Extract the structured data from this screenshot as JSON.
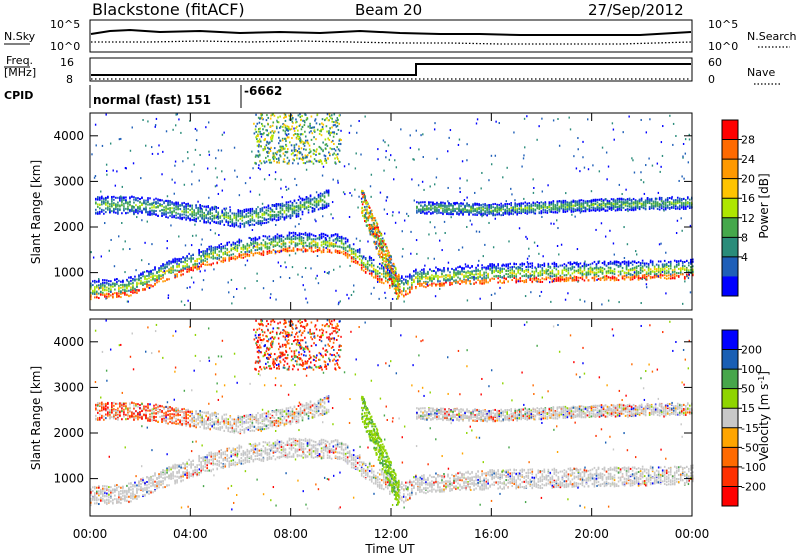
{
  "header": {
    "title": "Blackstone (fitACF)",
    "beam": "Beam 20",
    "date": "27/Sep/2012"
  },
  "top_panels": {
    "nsky_label": "N.Sky",
    "nsky_ticks": [
      "10^5",
      "10^0"
    ],
    "nsearch_label": "N.Search",
    "nsearch_ticks": [
      "10^5",
      "10^0"
    ],
    "freq_label": "Freq.",
    "freq_unit": "[MHz]",
    "freq_ticks": [
      16,
      8
    ],
    "nave_label": "Nave",
    "nave_ticks": [
      60,
      0
    ],
    "cpid_label": "CPID",
    "cpid_segments": [
      {
        "text": "normal (fast) 151",
        "start_hour": 0
      },
      {
        "text": "-6662",
        "start_hour": 6
      }
    ]
  },
  "chart_data": [
    {
      "type": "heatmap",
      "panel": "power",
      "ylabel": "Slant Range [km]",
      "ylim": [
        180,
        4500
      ],
      "yticks": [
        1000,
        2000,
        3000,
        4000
      ],
      "xlim": [
        0,
        24
      ],
      "xtick_labels": [
        "00:00",
        "04:00",
        "08:00",
        "12:00",
        "16:00",
        "20:00",
        "00:00"
      ],
      "xlabel": "Time UT",
      "colorbar": {
        "label": "Power [dB]",
        "ticks": [
          28,
          24,
          20,
          16,
          12,
          8,
          4
        ],
        "colors": [
          "#ff0000",
          "#ff6a00",
          "#ff9900",
          "#ffc400",
          "#aee600",
          "#45a84b",
          "#2a8c7a",
          "#1f5fb8",
          "#0000ff"
        ]
      },
      "bands": [
        {
          "name": "near-range echo",
          "x_hours": [
            0,
            1.5,
            3,
            4.5,
            6,
            8,
            10,
            11,
            12.5,
            13,
            16,
            20,
            24
          ],
          "range_km": [
            650,
            700,
            1050,
            1350,
            1550,
            1700,
            1650,
            1200,
            700,
            900,
            1000,
            1050,
            1100
          ]
        },
        {
          "name": "mid-range echo",
          "x_hours": [
            0.2,
            2,
            4,
            6,
            8,
            9.5
          ],
          "range_km": [
            2500,
            2500,
            2350,
            2200,
            2400,
            2650
          ]
        },
        {
          "name": "far echo",
          "x_hours": [
            13,
            16,
            20,
            24
          ],
          "range_km": [
            2450,
            2400,
            2500,
            2550
          ]
        }
      ]
    },
    {
      "type": "heatmap",
      "panel": "velocity",
      "ylabel": "Slant Range [km]",
      "ylim": [
        180,
        4500
      ],
      "yticks": [
        1000,
        2000,
        3000,
        4000
      ],
      "xlim": [
        0,
        24
      ],
      "xtick_labels": [
        "00:00",
        "04:00",
        "08:00",
        "12:00",
        "16:00",
        "20:00",
        "00:00"
      ],
      "xlabel": "Time UT",
      "colorbar": {
        "label": "Velocity [m s^-1]",
        "ticks": [
          200,
          100,
          50,
          15,
          -15,
          -50,
          -100,
          -200
        ],
        "colors": [
          "#0000ff",
          "#1a5fb4",
          "#47a64b",
          "#8fd400",
          "#c8c8c8",
          "#ffa500",
          "#ff6a00",
          "#ff3000",
          "#ff0000"
        ]
      }
    }
  ]
}
